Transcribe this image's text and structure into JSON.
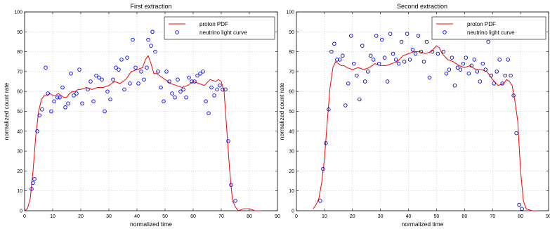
{
  "chart_data": [
    {
      "type": "line",
      "title": "First extraction",
      "xlabel": "normalized time",
      "ylabel": "normalized count rate",
      "xlim": [
        0,
        90
      ],
      "ylim": [
        0,
        100
      ],
      "xticks": [
        "0",
        "10",
        "20",
        "30",
        "40",
        "50",
        "60",
        "70",
        "80",
        "90"
      ],
      "yticks": [
        "0",
        "10",
        "20",
        "30",
        "40",
        "50",
        "60",
        "70",
        "80",
        "90",
        "100"
      ],
      "grid": true,
      "legend_position": "top-right",
      "legend": [
        "proton PDF",
        "neutrino light curve"
      ],
      "colors": {
        "line": "#ff0000",
        "markers": "#0000ff"
      },
      "series": [
        {
          "name": "proton PDF",
          "style": "line",
          "x": [
            0,
            1,
            2,
            3,
            4,
            5,
            6,
            7,
            8,
            9,
            10,
            11,
            12,
            13,
            14,
            15,
            16,
            17,
            18,
            19,
            20,
            22,
            24,
            26,
            28,
            30,
            32,
            34,
            36,
            38,
            40,
            42,
            43,
            44,
            45,
            46,
            47,
            48,
            50,
            52,
            54,
            56,
            58,
            60,
            62,
            64,
            66,
            68,
            69,
            70,
            71,
            72,
            73,
            74,
            75,
            76,
            78,
            80,
            82,
            84
          ],
          "y": [
            0,
            1,
            6,
            20,
            38,
            50,
            56,
            58,
            58,
            59,
            58,
            58,
            59,
            58,
            57,
            57,
            59,
            60,
            60,
            61,
            61,
            62,
            61,
            62,
            62,
            63,
            65,
            64,
            66,
            70,
            71,
            72,
            76,
            78,
            74,
            69,
            69,
            68,
            66,
            64,
            63,
            62,
            63,
            65,
            64,
            63,
            66,
            65,
            66,
            65,
            60,
            40,
            20,
            5,
            2,
            0,
            1,
            1,
            0,
            0
          ]
        },
        {
          "name": "neutrino light curve",
          "style": "scatter",
          "x": [
            2.5,
            3.0,
            3.5,
            4.5,
            5.3,
            6.2,
            7.5,
            8.3,
            9.5,
            10.5,
            11.7,
            12.5,
            13.5,
            14.5,
            15.5,
            16.5,
            17.5,
            18.5,
            19.5,
            20.5,
            22.5,
            23.5,
            24.5,
            25.5,
            26.5,
            27.5,
            28.5,
            29.5,
            30.5,
            31.5,
            32.5,
            33.5,
            34.5,
            35.5,
            36.5,
            37.5,
            38.5,
            39.5,
            40.5,
            41.5,
            42.5,
            43.5,
            44.0,
            45.0,
            45.5,
            46.5,
            47.5,
            48.5,
            49.5,
            50.5,
            51.5,
            52.5,
            53.5,
            54.5,
            55.5,
            56.5,
            57.5,
            58.5,
            59.5,
            60.5,
            61.5,
            62.5,
            63.5,
            64.5,
            65.5,
            66.5,
            67.5,
            68.5,
            69.5,
            70.5,
            71.5,
            72.5,
            73.5,
            75.0
          ],
          "y": [
            11,
            14,
            16,
            40,
            48,
            51,
            72,
            59,
            50,
            55,
            57,
            57,
            62,
            52,
            54,
            69,
            58,
            59,
            71,
            54,
            61,
            65,
            55,
            68,
            67,
            66,
            50,
            60,
            56,
            66,
            72,
            71,
            76,
            61,
            77,
            64,
            86,
            72,
            64,
            70,
            66,
            72,
            86,
            83,
            90,
            80,
            70,
            62,
            55,
            70,
            65,
            59,
            57,
            66,
            60,
            61,
            57,
            67,
            65,
            65,
            68,
            69,
            70,
            55,
            49,
            62,
            58,
            61,
            63,
            61,
            61,
            35,
            13,
            5
          ]
        }
      ]
    },
    {
      "type": "line",
      "title": "Second extraction",
      "xlabel": "normalized time",
      "ylabel": "normalized count rate",
      "xlim": [
        0,
        90
      ],
      "ylim": [
        0,
        100
      ],
      "xticks": [
        "0",
        "10",
        "20",
        "30",
        "40",
        "50",
        "60",
        "70",
        "80",
        "90"
      ],
      "yticks": [
        "0",
        "10",
        "20",
        "30",
        "40",
        "50",
        "60",
        "70",
        "80",
        "90",
        "100"
      ],
      "grid": true,
      "legend_position": "top-right",
      "legend": [
        "proton PDF",
        "neutrino light curve"
      ],
      "colors": {
        "line": "#ff0000",
        "markers": "#0000ff"
      },
      "series": [
        {
          "name": "proton PDF",
          "style": "line",
          "x": [
            6,
            7,
            8,
            9,
            10,
            11,
            12,
            13,
            14,
            15,
            16,
            17,
            18,
            20,
            22,
            24,
            26,
            28,
            30,
            32,
            34,
            36,
            38,
            40,
            42,
            44,
            46,
            48,
            50,
            51,
            52,
            54,
            56,
            58,
            60,
            62,
            64,
            66,
            68,
            70,
            72,
            74,
            75,
            76,
            77,
            78,
            79,
            80,
            81,
            82,
            84,
            86
          ],
          "y": [
            1,
            3,
            6,
            14,
            26,
            45,
            62,
            72,
            75,
            74,
            73,
            73,
            72,
            71,
            72,
            71,
            72,
            74,
            73,
            73,
            74,
            75,
            78,
            79,
            80,
            80,
            79,
            80,
            83,
            82,
            79,
            76,
            75,
            73,
            72,
            73,
            71,
            71,
            70,
            66,
            63,
            64,
            66,
            65,
            63,
            55,
            45,
            20,
            5,
            1,
            0,
            0
          ]
        },
        {
          "name": "neutrino light curve",
          "style": "scatter",
          "x": [
            8.5,
            9.5,
            10.5,
            11.5,
            12.5,
            13.5,
            14.5,
            15.5,
            16.5,
            17.5,
            18.5,
            19.5,
            20.5,
            21.5,
            22.5,
            23.5,
            24.5,
            25.5,
            26.5,
            27.5,
            28.5,
            29.5,
            30.5,
            31.5,
            32.5,
            33.5,
            34.5,
            35.5,
            36.5,
            37.5,
            38.5,
            39.5,
            40.5,
            41.5,
            42.5,
            43.5,
            44.5,
            45.5,
            46.5,
            47.5,
            48.5,
            49.5,
            50.5,
            51.5,
            52.5,
            53.5,
            54.5,
            55.5,
            56.5,
            57.5,
            58.5,
            59.5,
            60.5,
            61.5,
            62.5,
            63.5,
            64.5,
            65.5,
            66.5,
            67.5,
            68.5,
            69.5,
            70.5,
            71.5,
            72.5,
            73.5,
            74.5,
            75.5,
            76.5,
            77.5,
            78.5,
            79.5,
            80.5
          ],
          "y": [
            5,
            21,
            34,
            51,
            80,
            84,
            76,
            76,
            78,
            53,
            64,
            88,
            74,
            68,
            56,
            83,
            65,
            70,
            78,
            76,
            88,
            74,
            86,
            77,
            65,
            89,
            79,
            76,
            74,
            85,
            75,
            89,
            76,
            81,
            79,
            88,
            80,
            75,
            85,
            67,
            80,
            89,
            79,
            90,
            80,
            69,
            71,
            77,
            63,
            72,
            71,
            74,
            77,
            69,
            73,
            76,
            70,
            65,
            74,
            71,
            85,
            68,
            64,
            70,
            76,
            64,
            68,
            76,
            68,
            58,
            39,
            3,
            1
          ]
        }
      ]
    }
  ]
}
